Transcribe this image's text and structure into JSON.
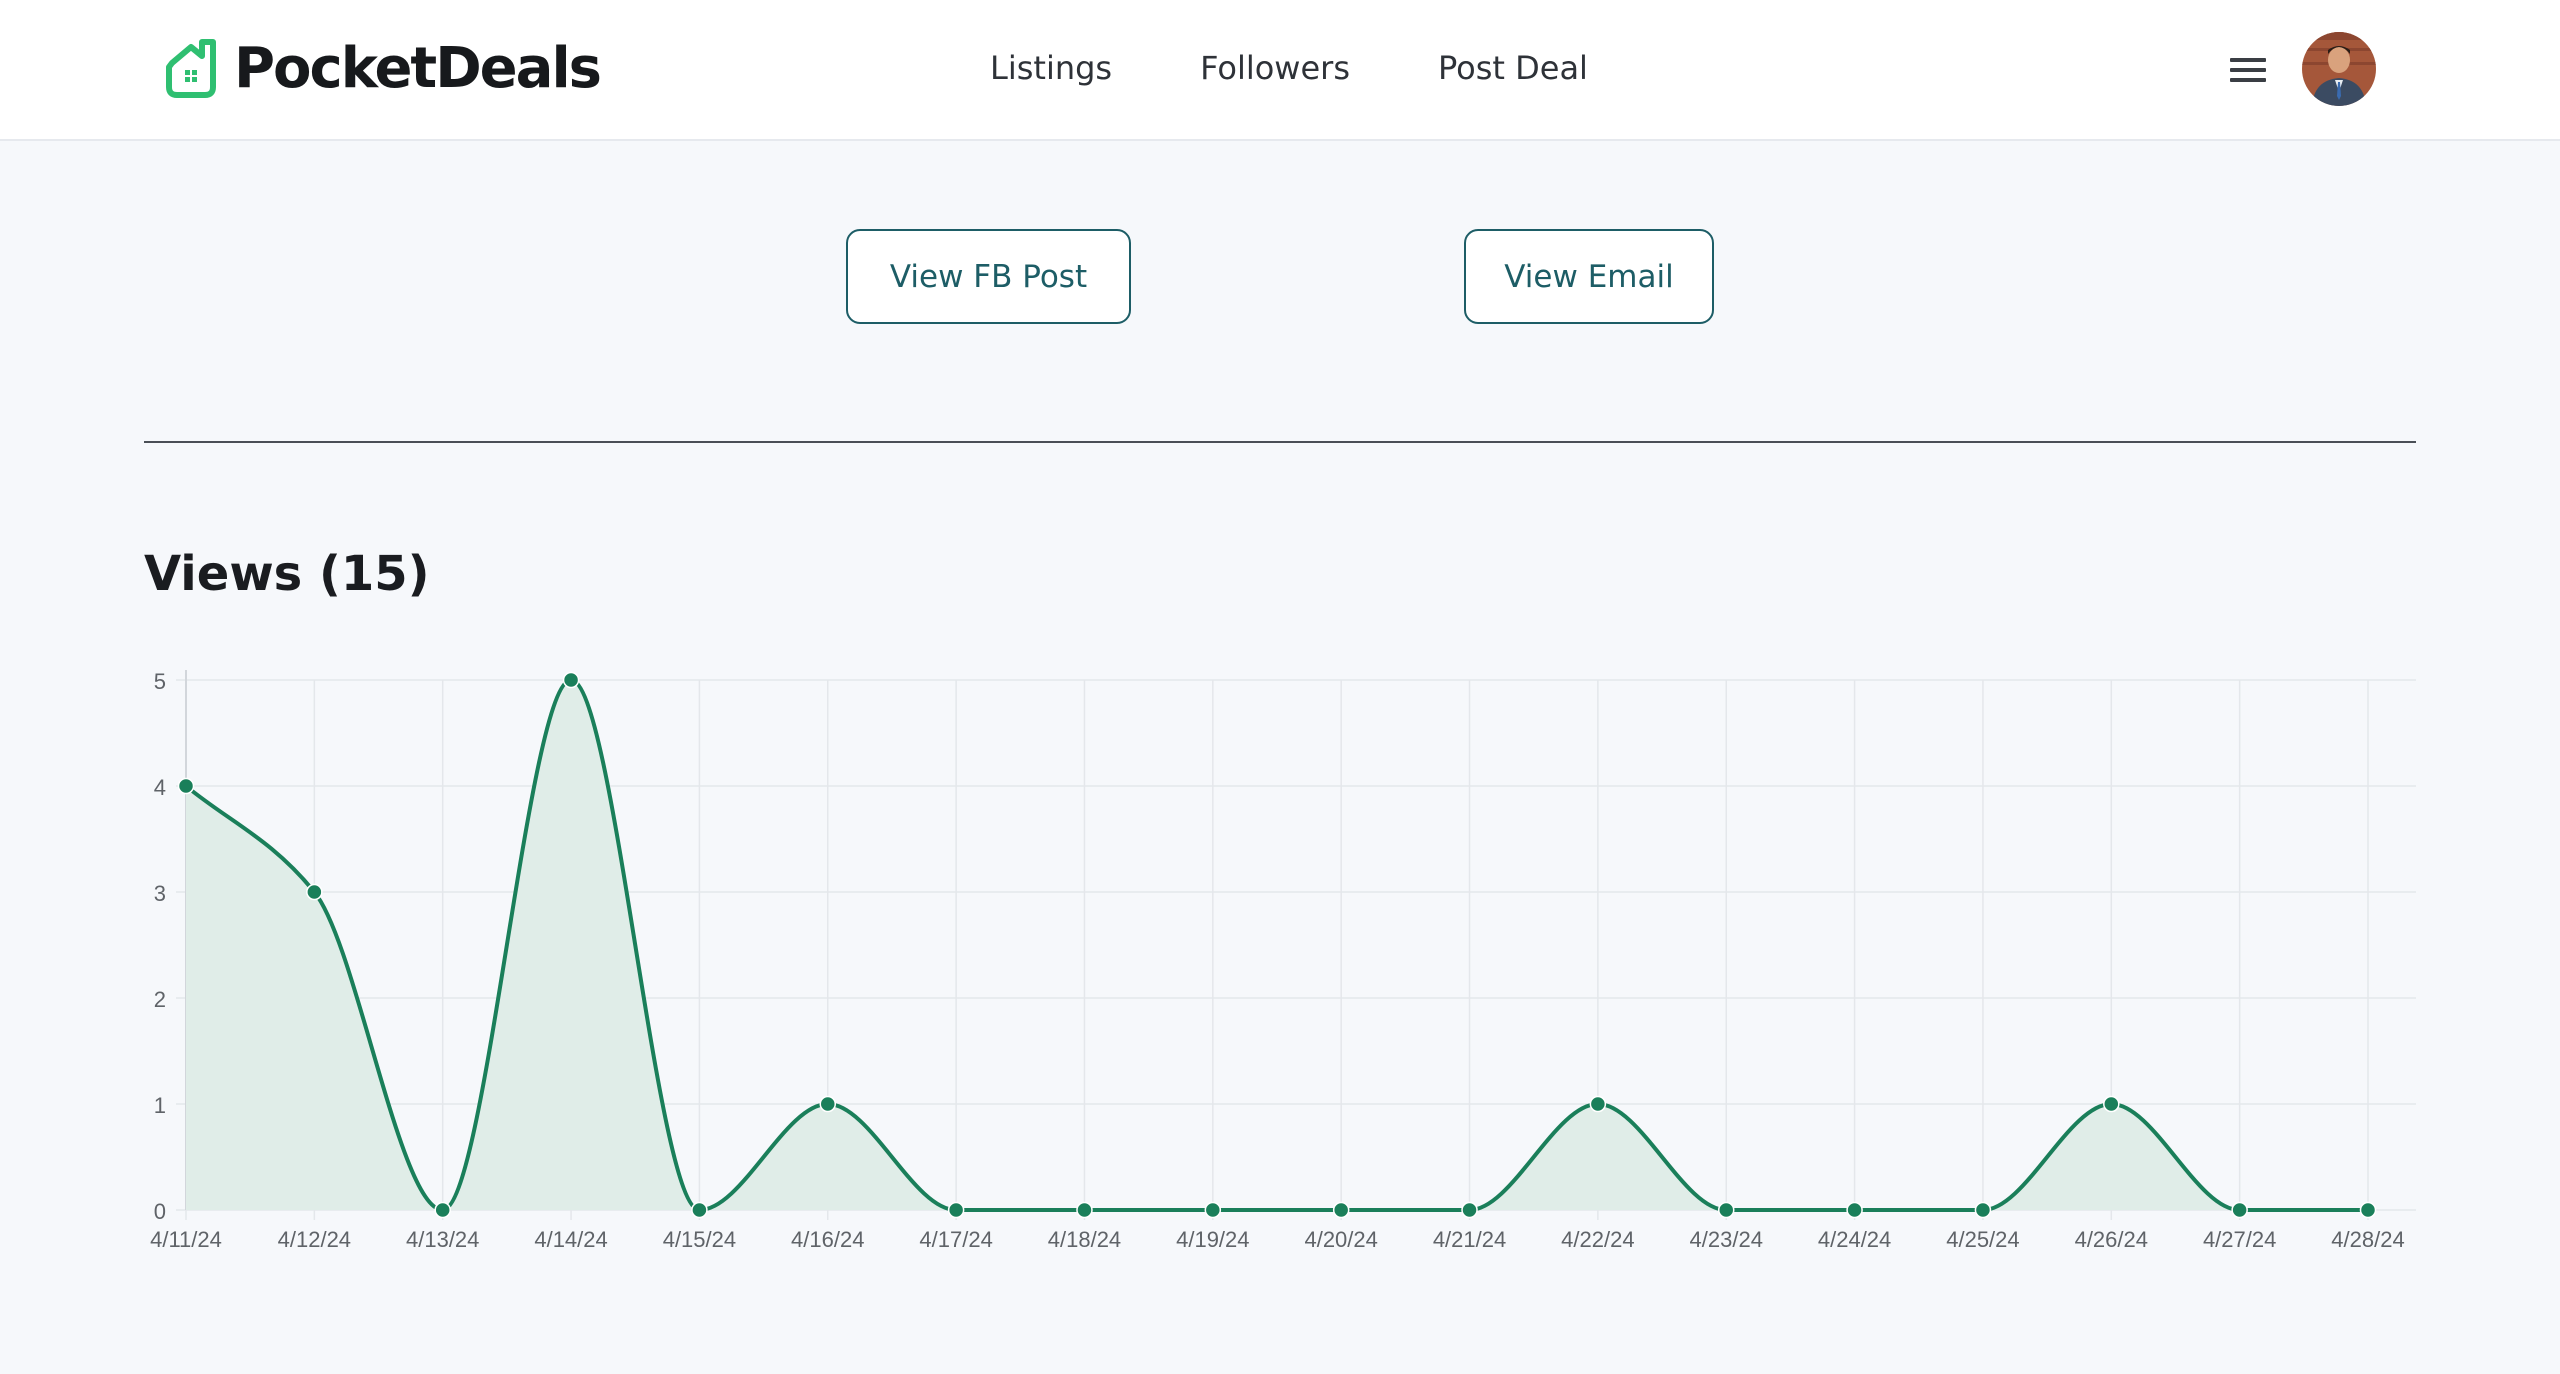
{
  "header": {
    "brand": "PocketDeals",
    "nav": [
      "Listings",
      "Followers",
      "Post Deal"
    ],
    "menu_icon": "hamburger-icon",
    "avatar_icon": "user-avatar"
  },
  "actions": {
    "fb_post_label": "View FB Post",
    "email_label": "View Email"
  },
  "views": {
    "title": "Views (15)"
  },
  "colors": {
    "brand_green": "#2fbf71",
    "line": "#1a7f5a",
    "fill": "#e0ede8",
    "button_border": "#1d5d66"
  },
  "chart_data": {
    "type": "area",
    "x": [
      "4/11/24",
      "4/12/24",
      "4/13/24",
      "4/14/24",
      "4/15/24",
      "4/16/24",
      "4/17/24",
      "4/18/24",
      "4/19/24",
      "4/20/24",
      "4/21/24",
      "4/22/24",
      "4/23/24",
      "4/24/24",
      "4/25/24",
      "4/26/24",
      "4/27/24",
      "4/28/24"
    ],
    "series": [
      {
        "values": [
          4,
          3,
          0,
          5,
          0,
          1,
          0,
          0,
          0,
          0,
          0,
          1,
          0,
          0,
          0,
          1,
          0,
          0
        ]
      }
    ],
    "y_ticks": [
      0,
      1,
      2,
      3,
      4,
      5
    ],
    "ylim": [
      0,
      5
    ],
    "grid": true,
    "legend": "none"
  }
}
